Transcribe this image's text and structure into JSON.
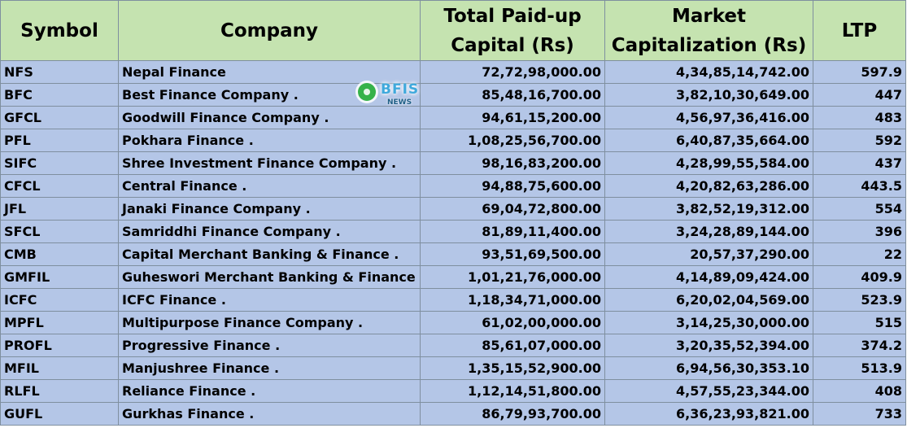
{
  "table": {
    "headers": {
      "symbol": "Symbol",
      "company": "Company",
      "capital": "Total Paid-up Capital (Rs)",
      "market_cap": "Market Capitalization (Rs)",
      "ltp": "LTP"
    },
    "rows": [
      {
        "symbol": "NFS",
        "company": "Nepal Finance",
        "capital": "72,72,98,000.00",
        "market_cap": "4,34,85,14,742.00",
        "ltp": "597.9"
      },
      {
        "symbol": "BFC",
        "company": "Best Finance Company .",
        "capital": "85,48,16,700.00",
        "market_cap": "3,82,10,30,649.00",
        "ltp": "447"
      },
      {
        "symbol": "GFCL",
        "company": "Goodwill Finance Company .",
        "capital": "94,61,15,200.00",
        "market_cap": "4,56,97,36,416.00",
        "ltp": "483"
      },
      {
        "symbol": "PFL",
        "company": "Pokhara Finance .",
        "capital": "1,08,25,56,700.00",
        "market_cap": "6,40,87,35,664.00",
        "ltp": "592"
      },
      {
        "symbol": "SIFC",
        "company": "Shree Investment Finance Company .",
        "capital": "98,16,83,200.00",
        "market_cap": "4,28,99,55,584.00",
        "ltp": "437"
      },
      {
        "symbol": "CFCL",
        "company": "Central Finance .",
        "capital": "94,88,75,600.00",
        "market_cap": "4,20,82,63,286.00",
        "ltp": "443.5"
      },
      {
        "symbol": "JFL",
        "company": "Janaki Finance Company .",
        "capital": "69,04,72,800.00",
        "market_cap": "3,82,52,19,312.00",
        "ltp": "554"
      },
      {
        "symbol": "SFCL",
        "company": "Samriddhi Finance Company .",
        "capital": "81,89,11,400.00",
        "market_cap": "3,24,28,89,144.00",
        "ltp": "396"
      },
      {
        "symbol": "CMB",
        "company": "Capital Merchant Banking & Finance .",
        "capital": "93,51,69,500.00",
        "market_cap": "20,57,37,290.00",
        "ltp": "22"
      },
      {
        "symbol": "GMFIL",
        "company": "Guheswori Merchant Banking & Finance .",
        "capital": "1,01,21,76,000.00",
        "market_cap": "4,14,89,09,424.00",
        "ltp": "409.9"
      },
      {
        "symbol": "ICFC",
        "company": "ICFC Finance .",
        "capital": "1,18,34,71,000.00",
        "market_cap": "6,20,02,04,569.00",
        "ltp": "523.9"
      },
      {
        "symbol": "MPFL",
        "company": "Multipurpose Finance Company .",
        "capital": "61,02,00,000.00",
        "market_cap": "3,14,25,30,000.00",
        "ltp": "515"
      },
      {
        "symbol": "PROFL",
        "company": "Progressive Finance .",
        "capital": "85,61,07,000.00",
        "market_cap": "3,20,35,52,394.00",
        "ltp": "374.2"
      },
      {
        "symbol": "MFIL",
        "company": "Manjushree Finance .",
        "capital": "1,35,15,52,900.00",
        "market_cap": "6,94,56,30,353.10",
        "ltp": "513.9"
      },
      {
        "symbol": "RLFL",
        "company": "Reliance Finance .",
        "capital": "1,12,14,51,800.00",
        "market_cap": "4,57,55,23,344.00",
        "ltp": "408"
      },
      {
        "symbol": "GUFL",
        "company": "Gurkhas Finance .",
        "capital": "86,79,93,700.00",
        "market_cap": "6,36,23,93,821.00",
        "ltp": "733"
      }
    ]
  },
  "watermark": {
    "brand": "BFIS",
    "sub": "NEWS"
  },
  "colors": {
    "header_bg": "#c5e3b0",
    "row_bg": "#b4c6e7",
    "border": "#7f8f9f"
  }
}
